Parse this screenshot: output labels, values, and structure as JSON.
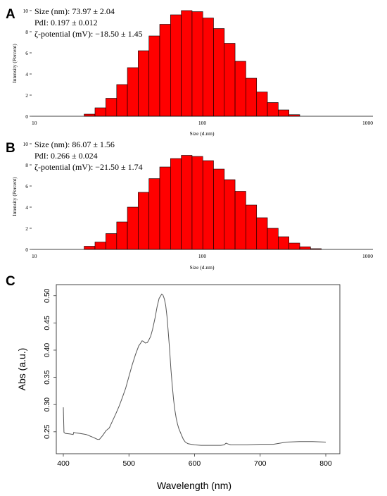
{
  "panels": {
    "A": {
      "letter": "A"
    },
    "B": {
      "letter": "B"
    },
    "C": {
      "letter": "C"
    }
  },
  "chart_data": [
    {
      "id": "A",
      "type": "bar",
      "title": "",
      "xlabel": "Size (d.nm)",
      "ylabel": "Intensity (Percent)",
      "xscale": "log",
      "xlim": [
        10,
        1000
      ],
      "ylim": [
        0,
        10
      ],
      "xticks": [
        "10",
        "100",
        "1000"
      ],
      "yticks": [
        "0",
        "2",
        "4",
        "6",
        "8",
        "10"
      ],
      "bar_color": "#ff0000",
      "annotations": [
        "Size (nm): 73.97 ± 2.04",
        "PdI: 0.197 ± 0.012",
        "ζ-potential (mV): −18.50 ± 1.45"
      ],
      "bin_edges": [
        20.3,
        23.5,
        27.2,
        31.5,
        36.4,
        42.1,
        48.7,
        56.3,
        65.1,
        75.3,
        87.1,
        100.7,
        116.4,
        134.6,
        155.6,
        180.0,
        208.2,
        240.8,
        278.5,
        322.1,
        372.5
      ],
      "values": [
        0.2,
        0.8,
        1.7,
        3.0,
        4.6,
        6.2,
        7.6,
        8.7,
        9.6,
        10.0,
        9.9,
        9.3,
        8.3,
        6.9,
        5.2,
        3.6,
        2.3,
        1.3,
        0.6,
        0.15
      ]
    },
    {
      "id": "B",
      "type": "bar",
      "title": "",
      "xlabel": "Size (d.nm)",
      "ylabel": "Intensity (Percent)",
      "xscale": "log",
      "xlim": [
        10,
        1000
      ],
      "ylim": [
        0,
        10
      ],
      "xticks": [
        "10",
        "100",
        "1000"
      ],
      "yticks": [
        "0",
        "2",
        "4",
        "6",
        "8",
        "10"
      ],
      "bar_color": "#ff0000",
      "annotations": [
        "Size (nm): 86.07 ± 1.56",
        "PdI: 0.266 ± 0.024",
        "ζ-potential (mV): −21.50 ± 1.74"
      ],
      "bin_edges": [
        20.3,
        23.5,
        27.2,
        31.5,
        36.4,
        42.1,
        48.7,
        56.3,
        65.1,
        75.3,
        87.1,
        100.7,
        116.4,
        134.6,
        155.6,
        180.0,
        208.2,
        240.8,
        278.5,
        322.1,
        372.5,
        430.8,
        498.3
      ],
      "values": [
        0.3,
        0.7,
        1.5,
        2.6,
        4.0,
        5.4,
        6.7,
        7.8,
        8.6,
        8.9,
        8.8,
        8.4,
        7.6,
        6.6,
        5.5,
        4.2,
        3.0,
        2.0,
        1.2,
        0.6,
        0.25,
        0.07
      ]
    },
    {
      "id": "C",
      "type": "line",
      "title": "",
      "xlabel": "Wavelength (nm)",
      "ylabel": "Abs (a.u.)",
      "xlim": [
        400,
        800
      ],
      "ylim": [
        0.22,
        0.51
      ],
      "xticks": [
        "400",
        "500",
        "600",
        "700",
        "800"
      ],
      "yticks": [
        "0.25",
        "0.30",
        "0.35",
        "0.40",
        "0.45",
        "0.50"
      ],
      "line_color": "#555555",
      "series": [
        {
          "x": [
            400,
            401,
            403,
            410,
            415,
            416,
            418,
            425,
            435,
            445,
            452,
            455,
            460,
            465,
            470,
            475,
            480,
            485,
            490,
            495,
            500,
            505,
            510,
            515,
            518,
            520,
            522,
            525,
            528,
            530,
            533,
            536,
            540,
            543,
            546,
            550,
            552,
            554,
            556,
            558,
            560,
            562,
            564,
            566,
            568,
            570,
            572,
            574,
            576,
            578,
            580,
            583,
            586,
            590,
            595,
            600,
            610,
            620,
            630,
            640,
            645,
            648,
            650,
            655,
            660,
            680,
            700,
            720,
            740,
            760,
            780,
            800
          ],
          "y": [
            0.295,
            0.249,
            0.247,
            0.246,
            0.245,
            0.249,
            0.248,
            0.247,
            0.245,
            0.24,
            0.236,
            0.236,
            0.243,
            0.252,
            0.257,
            0.27,
            0.283,
            0.297,
            0.313,
            0.33,
            0.352,
            0.373,
            0.392,
            0.408,
            0.413,
            0.417,
            0.416,
            0.413,
            0.414,
            0.418,
            0.425,
            0.438,
            0.46,
            0.48,
            0.495,
            0.503,
            0.501,
            0.494,
            0.482,
            0.462,
            0.432,
            0.4,
            0.365,
            0.335,
            0.309,
            0.29,
            0.275,
            0.264,
            0.256,
            0.25,
            0.244,
            0.236,
            0.231,
            0.228,
            0.227,
            0.226,
            0.225,
            0.225,
            0.225,
            0.225,
            0.226,
            0.229,
            0.228,
            0.226,
            0.226,
            0.226,
            0.227,
            0.227,
            0.231,
            0.232,
            0.232,
            0.231
          ]
        }
      ]
    }
  ]
}
